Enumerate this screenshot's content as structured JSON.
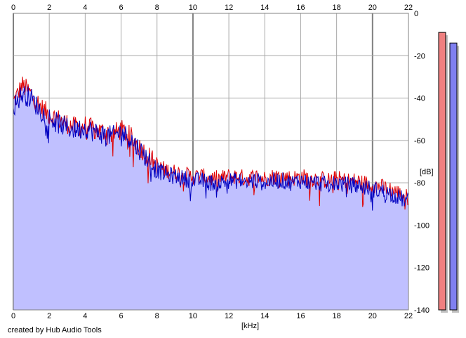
{
  "chart_data": {
    "type": "area",
    "title": "",
    "xlabel": "[kHz]",
    "ylabel": "[dB]",
    "xlim": [
      0,
      22
    ],
    "ylim": [
      -140,
      0
    ],
    "x_ticks": [
      "0",
      "2",
      "4",
      "6",
      "8",
      "10",
      "12",
      "14",
      "16",
      "18",
      "20",
      "22"
    ],
    "y_ticks": [
      "0",
      "-20",
      "-40",
      "-60",
      "-80",
      "-100",
      "-120",
      "-140"
    ],
    "grid": true,
    "x_unit": "kHz",
    "y_unit": "dB",
    "series": [
      {
        "color": "#e00000",
        "x": [
          0,
          0.5,
          1,
          1.5,
          2,
          2.5,
          3,
          3.5,
          4,
          4.5,
          5,
          5.5,
          6,
          6.5,
          7,
          7.5,
          8,
          8.5,
          9,
          9.5,
          10,
          10.5,
          11,
          11.5,
          12,
          12.5,
          13,
          13.5,
          14,
          14.5,
          15,
          15.5,
          16,
          16.5,
          17,
          17.5,
          18,
          18.5,
          19,
          19.5,
          20,
          20.5,
          21,
          21.5,
          22
        ],
        "values": [
          -42,
          -34,
          -38,
          -44,
          -48,
          -50,
          -52,
          -54,
          -53,
          -55,
          -56,
          -57,
          -55,
          -58,
          -63,
          -67,
          -72,
          -74,
          -75,
          -76,
          -77,
          -77,
          -78,
          -78,
          -77,
          -77,
          -78,
          -77,
          -78,
          -77,
          -77,
          -78,
          -77,
          -78,
          -78,
          -79,
          -78,
          -79,
          -79,
          -80,
          -81,
          -82,
          -83,
          -85,
          -87
        ]
      },
      {
        "color": "#0000c0",
        "x": [
          0,
          0.5,
          1,
          1.5,
          2,
          2.5,
          3,
          3.5,
          4,
          4.5,
          5,
          5.5,
          6,
          6.5,
          7,
          7.5,
          8,
          8.5,
          9,
          9.5,
          10,
          10.5,
          11,
          11.5,
          12,
          12.5,
          13,
          13.5,
          14,
          14.5,
          15,
          15.5,
          16,
          16.5,
          17,
          17.5,
          18,
          18.5,
          19,
          19.5,
          20,
          20.5,
          21,
          21.5,
          22
        ],
        "values": [
          -44,
          -38,
          -40,
          -46,
          -49,
          -52,
          -54,
          -55,
          -54,
          -56,
          -57,
          -58,
          -56,
          -59,
          -64,
          -69,
          -74,
          -76,
          -77,
          -78,
          -79,
          -79,
          -80,
          -80,
          -79,
          -79,
          -80,
          -79,
          -80,
          -79,
          -79,
          -80,
          -79,
          -80,
          -80,
          -81,
          -80,
          -81,
          -81,
          -82,
          -83,
          -84,
          -85,
          -87,
          -89
        ]
      }
    ],
    "fill_color": "#c0c0ff",
    "channel_meters": [
      {
        "color": "#f08080",
        "level_db": -9
      },
      {
        "color": "#8080f0",
        "level_db": -14
      }
    ]
  },
  "footer": {
    "credit": "created by Hub Audio Tools"
  }
}
